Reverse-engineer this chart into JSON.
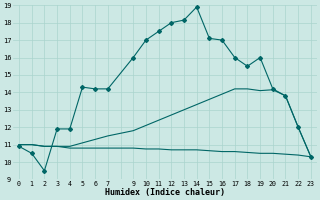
{
  "xlabel": "Humidex (Indice chaleur)",
  "bg_color": "#cce8e4",
  "grid_color": "#aad4ce",
  "line_color": "#006666",
  "xlim": [
    -0.5,
    23.5
  ],
  "ylim": [
    9,
    19
  ],
  "ytick_values": [
    9,
    10,
    11,
    12,
    13,
    14,
    15,
    16,
    17,
    18,
    19
  ],
  "series1_x": [
    0,
    1,
    2,
    3,
    4,
    5,
    6,
    7,
    9,
    10,
    11,
    12,
    13,
    14,
    15,
    16,
    17,
    18,
    19,
    20,
    21,
    22,
    23
  ],
  "series1_y": [
    10.9,
    10.5,
    9.5,
    11.9,
    11.9,
    14.3,
    14.2,
    14.2,
    16.0,
    17.0,
    17.5,
    18.0,
    18.15,
    18.9,
    17.1,
    17.0,
    16.0,
    15.5,
    16.0,
    14.2,
    13.8,
    12.0,
    10.3
  ],
  "series2_x": [
    0,
    1,
    2,
    3,
    4,
    5,
    6,
    7,
    9,
    10,
    11,
    12,
    13,
    14,
    15,
    16,
    17,
    18,
    19,
    20,
    21,
    22,
    23
  ],
  "series2_y": [
    11.0,
    11.0,
    10.9,
    10.9,
    10.9,
    11.1,
    11.3,
    11.5,
    11.8,
    12.1,
    12.4,
    12.7,
    13.0,
    13.3,
    13.6,
    13.9,
    14.2,
    14.2,
    14.1,
    14.15,
    13.8,
    12.0,
    10.3
  ],
  "series3_x": [
    0,
    1,
    2,
    3,
    4,
    5,
    6,
    7,
    9,
    10,
    11,
    12,
    13,
    14,
    15,
    16,
    17,
    18,
    19,
    20,
    21,
    22,
    23
  ],
  "series3_y": [
    11.0,
    11.0,
    10.9,
    10.9,
    10.8,
    10.8,
    10.8,
    10.8,
    10.8,
    10.75,
    10.75,
    10.7,
    10.7,
    10.7,
    10.65,
    10.6,
    10.6,
    10.55,
    10.5,
    10.5,
    10.45,
    10.4,
    10.3
  ]
}
